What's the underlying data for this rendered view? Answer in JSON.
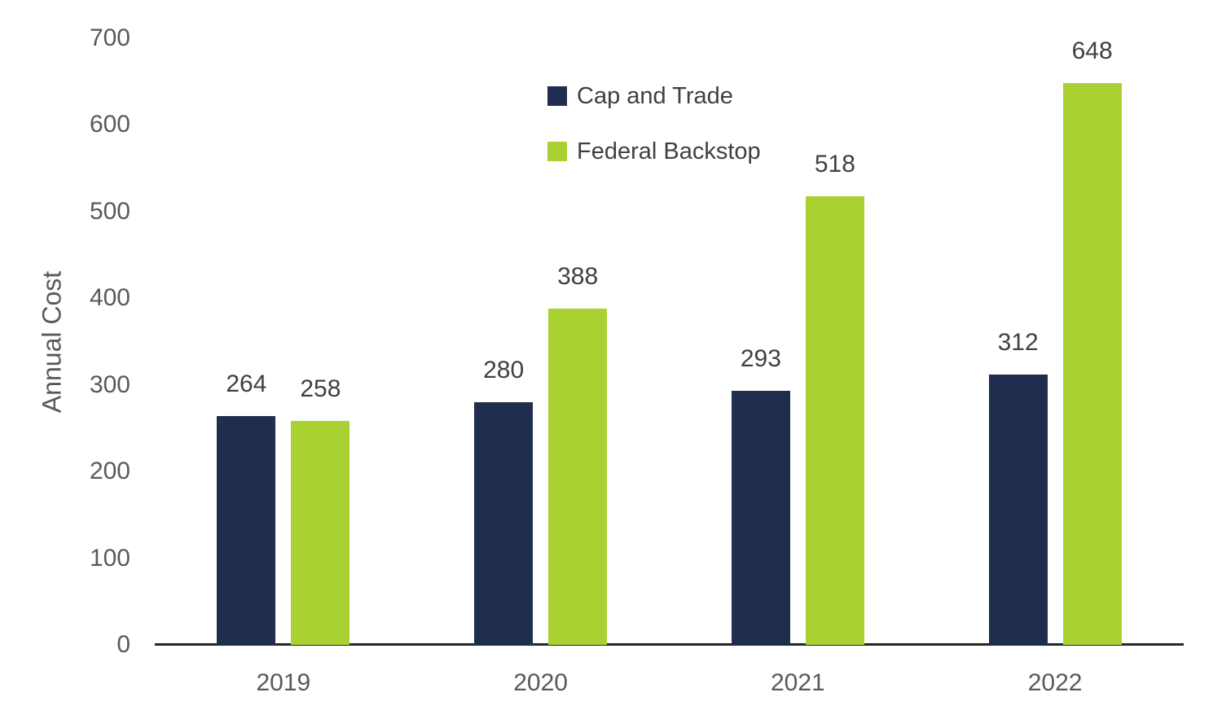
{
  "chart_data": {
    "type": "bar",
    "title": "",
    "xlabel": "",
    "ylabel": "Annual Cost",
    "categories": [
      "2019",
      "2020",
      "2021",
      "2022"
    ],
    "series": [
      {
        "name": "Cap and Trade",
        "color": "#1F2D4E",
        "values": [
          264,
          280,
          293,
          312
        ]
      },
      {
        "name": "Federal Backstop",
        "color": "#A9D132",
        "values": [
          258,
          388,
          518,
          648
        ]
      }
    ],
    "ylim": [
      0,
      700
    ],
    "yticks": [
      0,
      100,
      200,
      300,
      400,
      500,
      600,
      700
    ],
    "grid": false,
    "legend_position": "top-center-inside",
    "data_labels": true
  }
}
